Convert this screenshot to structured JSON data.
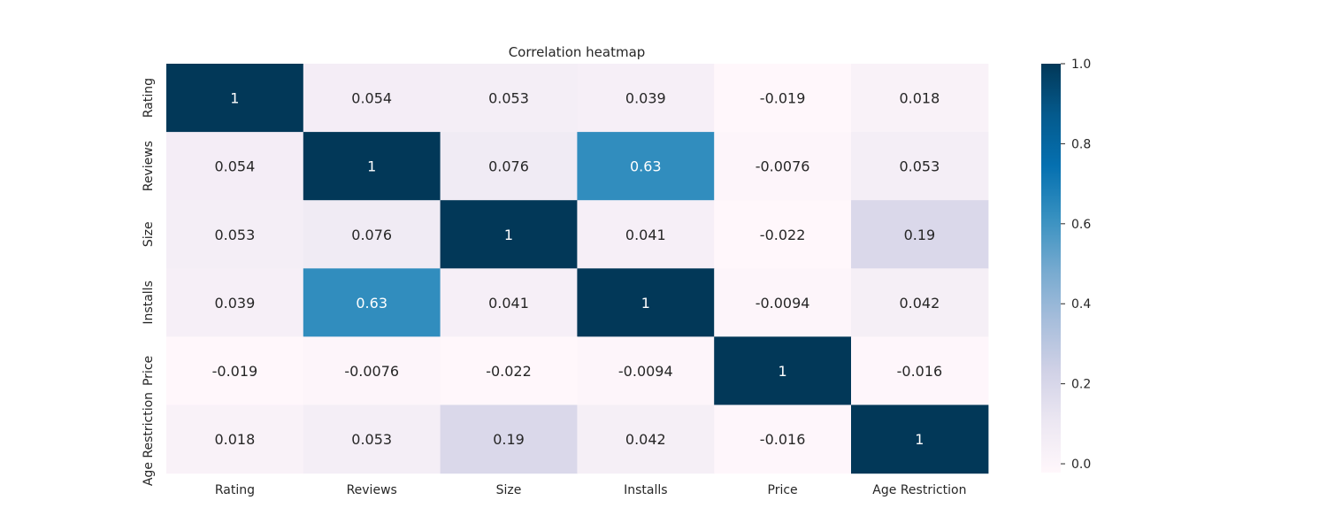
{
  "chart_data": {
    "type": "heatmap",
    "title": "Correlation heatmap",
    "x_categories": [
      "Rating",
      "Reviews",
      "Size",
      "Installs",
      "Price",
      "Age Restriction"
    ],
    "y_categories": [
      "Rating",
      "Reviews",
      "Size",
      "Installs",
      "Price",
      "Age Restriction"
    ],
    "values": [
      [
        1,
        0.054,
        0.053,
        0.039,
        -0.019,
        0.018
      ],
      [
        0.054,
        1,
        0.076,
        0.63,
        -0.0076,
        0.053
      ],
      [
        0.053,
        0.076,
        1,
        0.041,
        -0.022,
        0.19
      ],
      [
        0.039,
        0.63,
        0.041,
        1,
        -0.0094,
        0.042
      ],
      [
        -0.019,
        -0.0076,
        -0.022,
        -0.0094,
        1,
        -0.016
      ],
      [
        0.018,
        0.053,
        0.19,
        0.042,
        -0.016,
        1
      ]
    ],
    "annotations": [
      [
        "1",
        "0.054",
        "0.053",
        "0.039",
        "-0.019",
        "0.018"
      ],
      [
        "0.054",
        "1",
        "0.076",
        "0.63",
        "-0.0076",
        "0.053"
      ],
      [
        "0.053",
        "0.076",
        "1",
        "0.041",
        "-0.022",
        "0.19"
      ],
      [
        "0.039",
        "0.63",
        "0.041",
        "1",
        "-0.0094",
        "0.042"
      ],
      [
        "-0.019",
        "-0.0076",
        "-0.022",
        "-0.0094",
        "1",
        "-0.016"
      ],
      [
        "0.018",
        "0.053",
        "0.19",
        "0.042",
        "-0.016",
        "1"
      ]
    ],
    "colormap": "PuBu",
    "color_stops": [
      "#fff7fb",
      "#ece7f2",
      "#d0d1e6",
      "#a6bddb",
      "#74a9cf",
      "#3690c0",
      "#0570b0",
      "#045a8d",
      "#023858"
    ],
    "colorbar": {
      "range": [
        -0.022,
        1.0
      ],
      "ticks": [
        "0.0",
        "0.2",
        "0.4",
        "0.6",
        "0.8",
        "1.0"
      ],
      "tick_values": [
        0.0,
        0.2,
        0.4,
        0.6,
        0.8,
        1.0
      ]
    },
    "text_colors": {
      "light_bg": "#262626",
      "dark_bg": "#ffffff"
    }
  }
}
